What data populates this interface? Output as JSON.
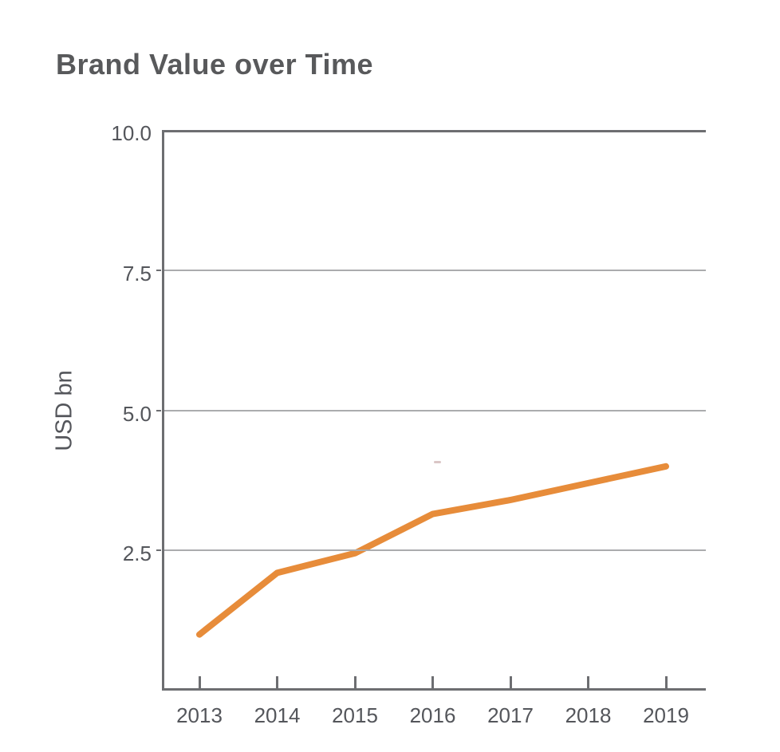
{
  "page": {
    "background": "#FFFFFF"
  },
  "chart_data": {
    "type": "line",
    "title": "Brand Value over Time",
    "xlabel": "",
    "ylabel": "USD bn",
    "x": [
      2013,
      2014,
      2015,
      2016,
      2017,
      2018,
      2019
    ],
    "xtick_labels": [
      "2013",
      "2014",
      "2015",
      "2016",
      "2017",
      "2018",
      "2019"
    ],
    "series": [
      {
        "name": "Brand Value",
        "values": [
          1.0,
          2.1,
          2.45,
          3.15,
          3.4,
          3.7,
          4.0
        ]
      }
    ],
    "ylim": [
      0,
      10
    ],
    "ytick_values": [
      10.0,
      7.5,
      5.0,
      2.5
    ],
    "ytick_labels": [
      "10.0",
      "7.5",
      "5.0",
      "2.5"
    ],
    "grid": "horizontal-only",
    "legend": "none",
    "colors": {
      "line": "#E78C3A",
      "axis": "#6D6E71",
      "gridline": "#ABACAE",
      "title_text": "#58595B",
      "tick_text": "#54565B"
    }
  }
}
